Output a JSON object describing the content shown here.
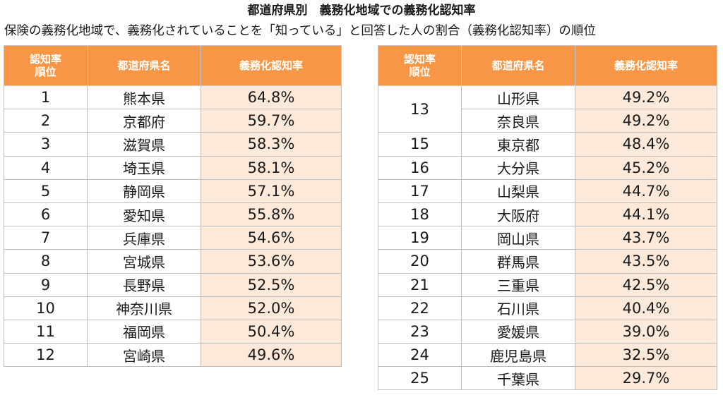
{
  "title": "都道府県別　義務化地域での義務化認知率",
  "subtitle": "保険の義務化地域で、義務化されていることを「知っている」と回答した人の割合（義務化認知率）の順位",
  "headers": {
    "rank_line1": "認知率",
    "rank_line2": "順位",
    "prefecture": "都道府県名",
    "rate": "義務化認知率"
  },
  "left_rows": [
    {
      "rank": "1",
      "pref": "熊本県",
      "rate": "64.8%"
    },
    {
      "rank": "2",
      "pref": "京都府",
      "rate": "59.7%"
    },
    {
      "rank": "3",
      "pref": "滋賀県",
      "rate": "58.3%"
    },
    {
      "rank": "4",
      "pref": "埼玉県",
      "rate": "58.1%"
    },
    {
      "rank": "5",
      "pref": "静岡県",
      "rate": "57.1%"
    },
    {
      "rank": "6",
      "pref": "愛知県",
      "rate": "55.8%"
    },
    {
      "rank": "7",
      "pref": "兵庫県",
      "rate": "54.6%"
    },
    {
      "rank": "8",
      "pref": "宮城県",
      "rate": "53.6%"
    },
    {
      "rank": "9",
      "pref": "長野県",
      "rate": "52.5%"
    },
    {
      "rank": "10",
      "pref": "神奈川県",
      "rate": "52.0%"
    },
    {
      "rank": "11",
      "pref": "福岡県",
      "rate": "50.4%"
    },
    {
      "rank": "12",
      "pref": "宮崎県",
      "rate": "49.6%"
    }
  ],
  "right_rows": [
    {
      "rank": "13",
      "pref": "山形県",
      "rate": "49.2%",
      "rowspan": 2
    },
    {
      "rank": "",
      "pref": "奈良県",
      "rate": "49.2%",
      "merged": true
    },
    {
      "rank": "15",
      "pref": "東京都",
      "rate": "48.4%"
    },
    {
      "rank": "16",
      "pref": "大分県",
      "rate": "45.2%"
    },
    {
      "rank": "17",
      "pref": "山梨県",
      "rate": "44.7%"
    },
    {
      "rank": "18",
      "pref": "大阪府",
      "rate": "44.1%"
    },
    {
      "rank": "19",
      "pref": "岡山県",
      "rate": "43.7%"
    },
    {
      "rank": "20",
      "pref": "群馬県",
      "rate": "43.5%"
    },
    {
      "rank": "21",
      "pref": "三重県",
      "rate": "42.5%"
    },
    {
      "rank": "22",
      "pref": "石川県",
      "rate": "40.4%"
    },
    {
      "rank": "23",
      "pref": "愛媛県",
      "rate": "39.0%"
    },
    {
      "rank": "24",
      "pref": "鹿児島県",
      "rate": "32.5%"
    },
    {
      "rank": "25",
      "pref": "千葉県",
      "rate": "29.7%"
    }
  ],
  "colors": {
    "header_bg": "#f79646",
    "rate_bg": "#fde9d9"
  }
}
